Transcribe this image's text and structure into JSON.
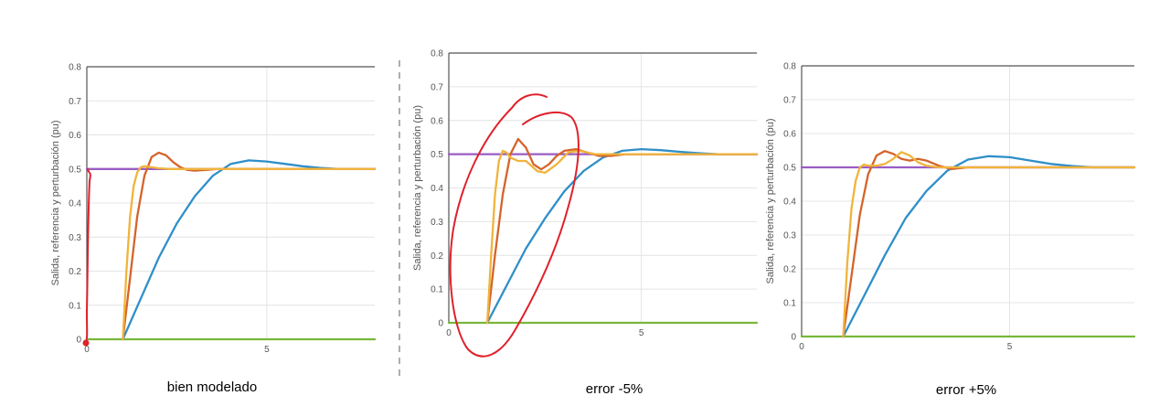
{
  "chart_data": [
    {
      "type": "line",
      "caption": "bien modelado",
      "ylabel": "Salida, referencia y perturbación (pu)",
      "xlim": [
        0,
        8
      ],
      "ylim": [
        0,
        0.8
      ],
      "xticks": [
        "0",
        "5"
      ],
      "yticks": [
        "0",
        "0.1",
        "0.2",
        "0.3",
        "0.4",
        "0.5",
        "0.6",
        "0.7",
        "0.8"
      ],
      "grid": true,
      "colors": {
        "blue": "#2f8fc8",
        "orange": "#d4642a",
        "yellow": "#f0b43c",
        "purple": "#9a5cc4",
        "green": "#78b83a",
        "annotation": "#e0202a"
      },
      "series": [
        {
          "color": "#9a5cc4",
          "x": [
            0,
            8
          ],
          "y": [
            0.5,
            0.5
          ]
        },
        {
          "color": "#78b83a",
          "x": [
            0,
            8
          ],
          "y": [
            0,
            0
          ]
        },
        {
          "color": "#2f8fc8",
          "x": [
            1.0,
            1.5,
            2.0,
            2.5,
            3.0,
            3.5,
            4.0,
            4.5,
            5.0,
            5.5,
            6.0,
            6.5,
            7.0,
            7.5,
            8.0
          ],
          "y": [
            0,
            0.12,
            0.24,
            0.34,
            0.42,
            0.48,
            0.515,
            0.525,
            0.522,
            0.515,
            0.508,
            0.503,
            0.5,
            0.5,
            0.5
          ]
        },
        {
          "color": "#d4642a",
          "x": [
            1.0,
            1.2,
            1.4,
            1.6,
            1.8,
            2.0,
            2.2,
            2.4,
            2.6,
            2.8,
            3.0,
            3.3,
            3.6,
            4.0,
            8.0
          ],
          "y": [
            0,
            0.18,
            0.36,
            0.48,
            0.535,
            0.548,
            0.54,
            0.52,
            0.505,
            0.497,
            0.495,
            0.497,
            0.5,
            0.5,
            0.5
          ]
        },
        {
          "color": "#f0b43c",
          "x": [
            1.0,
            1.1,
            1.2,
            1.3,
            1.4,
            1.5,
            1.6,
            1.8,
            2.0,
            2.3,
            2.6,
            3.0,
            8.0
          ],
          "y": [
            0,
            0.2,
            0.36,
            0.45,
            0.49,
            0.505,
            0.508,
            0.505,
            0.502,
            0.5,
            0.5,
            0.5,
            0.5
          ]
        }
      ]
    },
    {
      "type": "line",
      "caption": "error -5%",
      "ylabel": "Salida, referencia y perturbación (pu)",
      "xlim": [
        0,
        8
      ],
      "ylim": [
        0,
        0.8
      ],
      "xticks": [
        "0",
        "5"
      ],
      "yticks": [
        "0",
        "0.1",
        "0.2",
        "0.3",
        "0.4",
        "0.5",
        "0.6",
        "0.7",
        "0.8"
      ],
      "grid": true,
      "colors": {
        "blue": "#2f8fc8",
        "orange": "#d4642a",
        "yellow": "#f0b43c",
        "purple": "#9a5cc4",
        "green": "#78b83a",
        "annotation": "#e0202a"
      },
      "series": [
        {
          "color": "#9a5cc4",
          "x": [
            0,
            8
          ],
          "y": [
            0.5,
            0.5
          ]
        },
        {
          "color": "#78b83a",
          "x": [
            0,
            8
          ],
          "y": [
            0,
            0
          ]
        },
        {
          "color": "#2f8fc8",
          "x": [
            1.0,
            1.5,
            2.0,
            2.5,
            3.0,
            3.5,
            4.0,
            4.5,
            5.0,
            5.5,
            6.0,
            6.5,
            7.0,
            8.0
          ],
          "y": [
            0,
            0.11,
            0.22,
            0.31,
            0.39,
            0.45,
            0.49,
            0.51,
            0.515,
            0.512,
            0.507,
            0.503,
            0.5,
            0.5
          ]
        },
        {
          "color": "#d4642a",
          "x": [
            1.0,
            1.2,
            1.4,
            1.6,
            1.8,
            2.0,
            2.2,
            2.4,
            2.6,
            2.8,
            3.0,
            3.3,
            3.6,
            3.9,
            4.2,
            4.6,
            8.0
          ],
          "y": [
            0,
            0.2,
            0.38,
            0.5,
            0.545,
            0.52,
            0.47,
            0.455,
            0.47,
            0.495,
            0.51,
            0.515,
            0.505,
            0.495,
            0.495,
            0.5,
            0.5
          ]
        },
        {
          "color": "#f0b43c",
          "x": [
            1.0,
            1.1,
            1.2,
            1.3,
            1.4,
            1.5,
            1.6,
            1.8,
            2.0,
            2.3,
            2.5,
            2.8,
            3.1,
            3.4,
            3.8,
            8.0
          ],
          "y": [
            0,
            0.2,
            0.38,
            0.48,
            0.51,
            0.505,
            0.49,
            0.48,
            0.48,
            0.45,
            0.445,
            0.47,
            0.505,
            0.51,
            0.5,
            0.5
          ]
        }
      ]
    },
    {
      "type": "line",
      "caption": "error +5%",
      "ylabel": "Salida, referencia y perturbación (pu)",
      "xlim": [
        0,
        8
      ],
      "ylim": [
        0,
        0.8
      ],
      "xticks": [
        "0",
        "5"
      ],
      "yticks": [
        "0",
        "0.1",
        "0.2",
        "0.3",
        "0.4",
        "0.5",
        "0.6",
        "0.7",
        "0.8"
      ],
      "grid": true,
      "colors": {
        "blue": "#2f8fc8",
        "orange": "#d4642a",
        "yellow": "#f0b43c",
        "purple": "#9a5cc4",
        "green": "#78b83a",
        "annotation": "#e0202a"
      },
      "series": [
        {
          "color": "#9a5cc4",
          "x": [
            0,
            8
          ],
          "y": [
            0.5,
            0.5
          ]
        },
        {
          "color": "#78b83a",
          "x": [
            0,
            8
          ],
          "y": [
            0,
            0
          ]
        },
        {
          "color": "#2f8fc8",
          "x": [
            1.0,
            1.5,
            2.0,
            2.5,
            3.0,
            3.5,
            4.0,
            4.5,
            5.0,
            5.5,
            6.0,
            6.5,
            7.0,
            7.5,
            8.0
          ],
          "y": [
            0,
            0.12,
            0.24,
            0.35,
            0.43,
            0.49,
            0.523,
            0.533,
            0.53,
            0.52,
            0.51,
            0.504,
            0.5,
            0.5,
            0.5
          ]
        },
        {
          "color": "#d4642a",
          "x": [
            1.0,
            1.2,
            1.4,
            1.6,
            1.8,
            2.0,
            2.2,
            2.4,
            2.6,
            2.8,
            3.0,
            3.3,
            3.6,
            4.0,
            8.0
          ],
          "y": [
            0,
            0.18,
            0.36,
            0.48,
            0.535,
            0.548,
            0.54,
            0.525,
            0.52,
            0.525,
            0.52,
            0.505,
            0.495,
            0.5,
            0.5
          ]
        },
        {
          "color": "#f0b43c",
          "x": [
            1.0,
            1.1,
            1.2,
            1.3,
            1.4,
            1.5,
            1.6,
            1.8,
            2.0,
            2.2,
            2.4,
            2.6,
            2.8,
            3.0,
            3.3,
            3.6,
            8.0
          ],
          "y": [
            0,
            0.22,
            0.38,
            0.46,
            0.5,
            0.508,
            0.505,
            0.505,
            0.51,
            0.525,
            0.545,
            0.535,
            0.515,
            0.505,
            0.5,
            0.5,
            0.5
          ]
        }
      ]
    }
  ]
}
